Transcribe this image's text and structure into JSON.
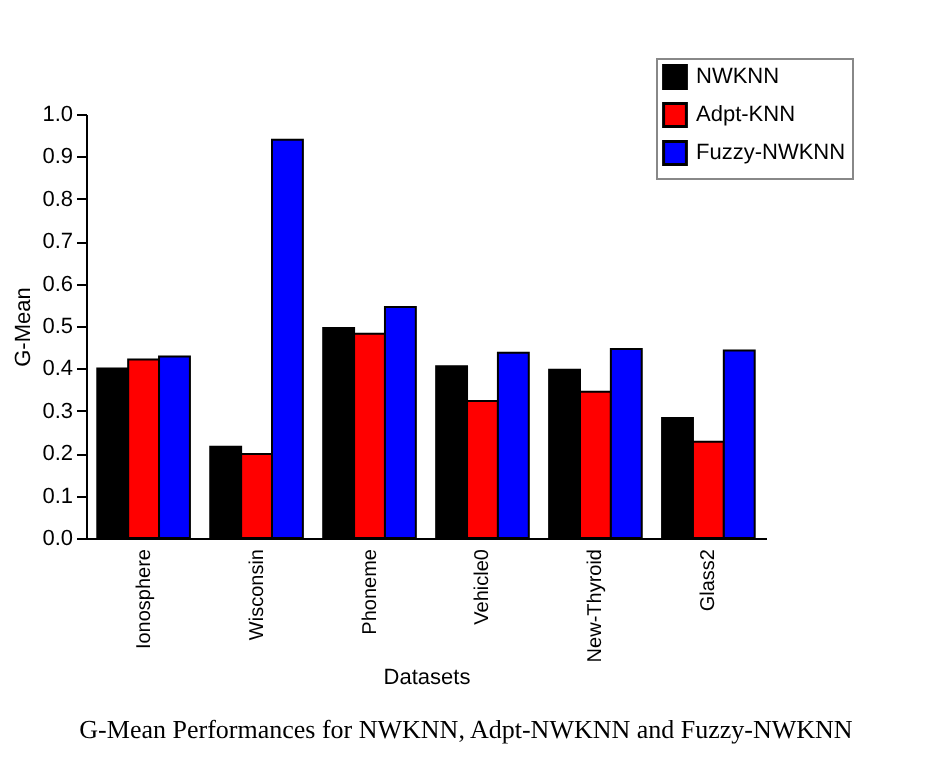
{
  "chart_data": {
    "type": "bar",
    "categories": [
      "Ionosphere",
      "Wisconsin",
      "Phoneme",
      "Vehicle0",
      "New-Thyroid",
      "Glass2"
    ],
    "series": [
      {
        "name": "NWKNN",
        "color": "#000000",
        "values": [
          0.4,
          0.215,
          0.495,
          0.405,
          0.397,
          0.283
        ]
      },
      {
        "name": "Adpt-KNN",
        "color": "#ff0000",
        "values": [
          0.421,
          0.198,
          0.482,
          0.323,
          0.345,
          0.227
        ]
      },
      {
        "name": "Fuzzy-NWKNN",
        "color": "#0000ff",
        "values": [
          0.428,
          0.939,
          0.545,
          0.437,
          0.446,
          0.442
        ]
      }
    ],
    "xlabel": "Datasets",
    "ylabel": "G-Mean",
    "ylim": [
      0,
      1.0
    ],
    "yticks": [
      {
        "value": 0,
        "label": "0.0"
      },
      0.1,
      0.2,
      0.3,
      0.4,
      0.5,
      0.6,
      0.7,
      0.8,
      0.9,
      {
        "value": 1.0,
        "label": "1.0"
      }
    ],
    "grid": false,
    "legend": "top right",
    "annotations": [
      "G-Mean Performances for NWKNN, Adpt-NWKNN and Fuzzy-NWKNN"
    ]
  }
}
